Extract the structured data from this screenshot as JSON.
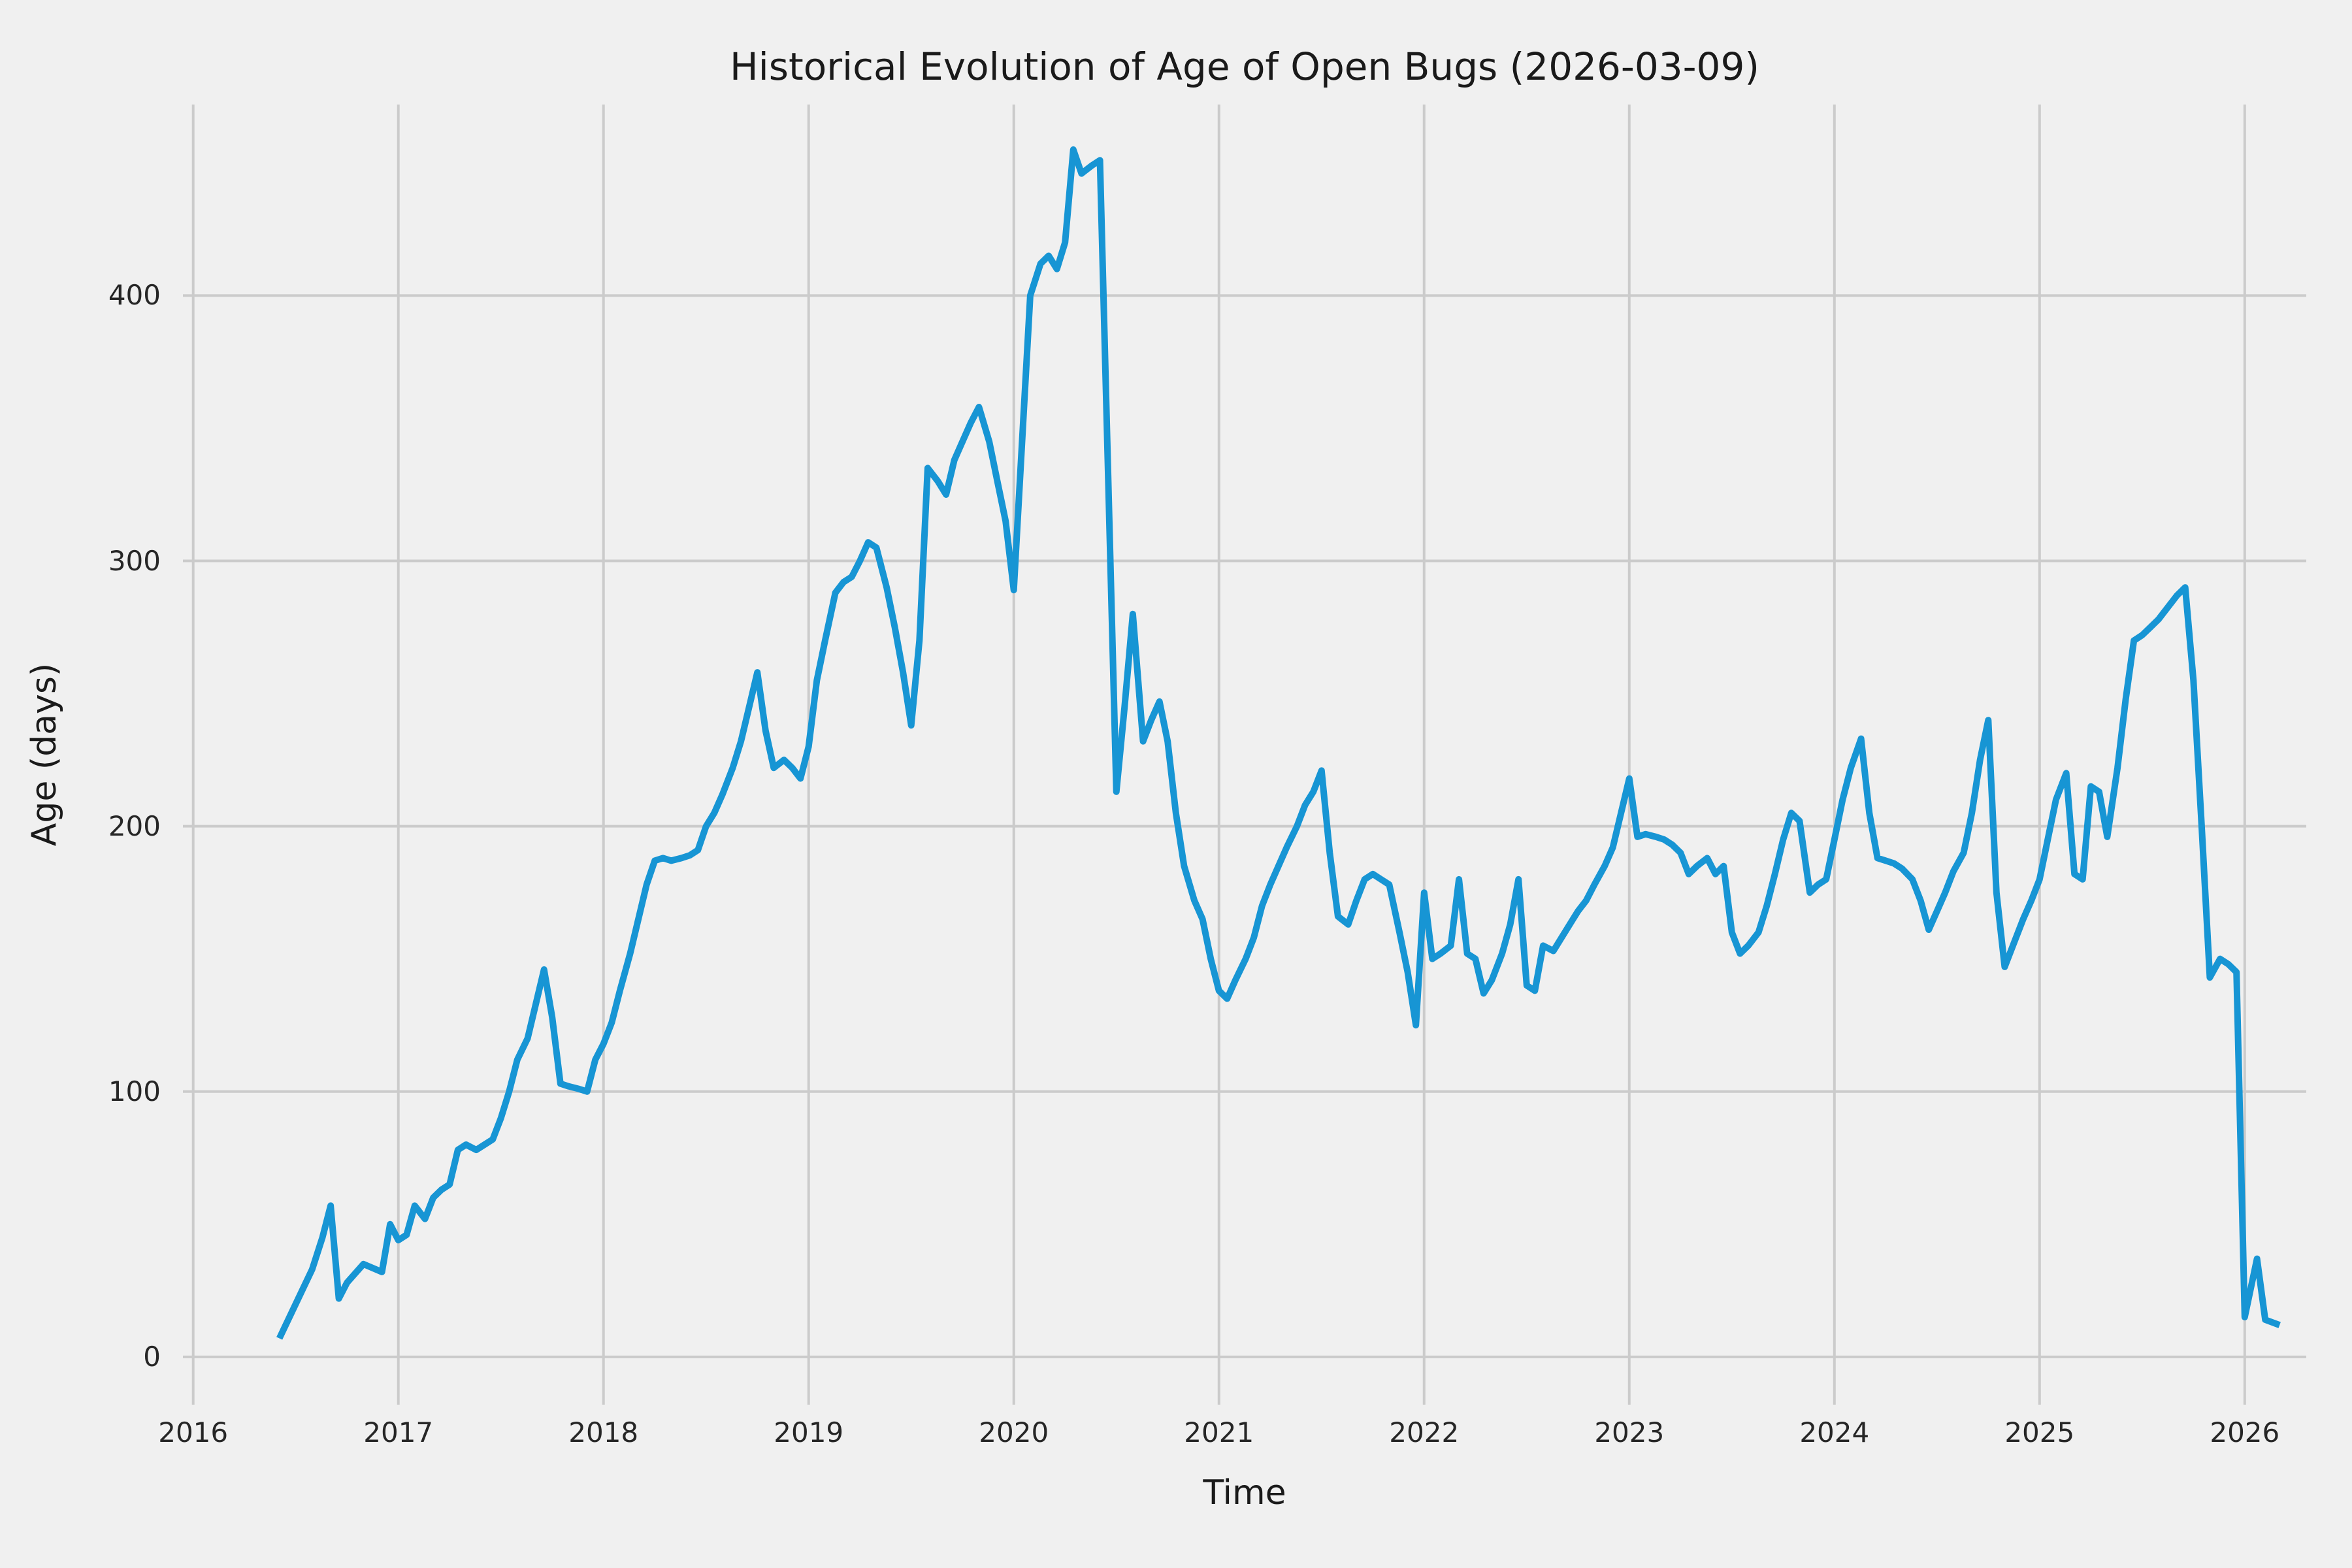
{
  "chart_data": {
    "type": "line",
    "title": "Historical Evolution of Age of Open Bugs (2026-03-09)",
    "xlabel": "Time",
    "ylabel": "Age (days)",
    "legend": null,
    "grid": true,
    "background_color": "#f0f0f0",
    "grid_color": "#cbcbcb",
    "line_color": "#1795d4",
    "line_width": 10,
    "xlim": [
      2015.95,
      2026.3
    ],
    "ylim": [
      -18,
      472
    ],
    "xticks": [
      2016,
      2017,
      2018,
      2019,
      2020,
      2021,
      2022,
      2023,
      2024,
      2025,
      2026
    ],
    "xtick_labels": [
      "2016",
      "2017",
      "2018",
      "2019",
      "2020",
      "2021",
      "2022",
      "2023",
      "2024",
      "2025",
      "2026"
    ],
    "yticks": [
      0,
      100,
      200,
      300,
      400
    ],
    "ytick_labels": [
      "0",
      "100",
      "200",
      "300",
      "400"
    ],
    "x": [
      2016.42,
      2016.5,
      2016.58,
      2016.63,
      2016.67,
      2016.71,
      2016.75,
      2016.83,
      2016.92,
      2016.96,
      2017.0,
      2017.04,
      2017.08,
      2017.13,
      2017.17,
      2017.21,
      2017.25,
      2017.29,
      2017.33,
      2017.38,
      2017.42,
      2017.46,
      2017.5,
      2017.54,
      2017.58,
      2017.63,
      2017.67,
      2017.71,
      2017.75,
      2017.79,
      2017.83,
      2017.88,
      2017.92,
      2017.96,
      2018.0,
      2018.04,
      2018.08,
      2018.13,
      2018.17,
      2018.21,
      2018.25,
      2018.29,
      2018.33,
      2018.38,
      2018.42,
      2018.46,
      2018.5,
      2018.54,
      2018.58,
      2018.63,
      2018.67,
      2018.71,
      2018.75,
      2018.79,
      2018.83,
      2018.88,
      2018.92,
      2018.96,
      2019.0,
      2019.04,
      2019.08,
      2019.13,
      2019.17,
      2019.21,
      2019.25,
      2019.29,
      2019.33,
      2019.38,
      2019.42,
      2019.46,
      2019.5,
      2019.54,
      2019.58,
      2019.63,
      2019.67,
      2019.71,
      2019.75,
      2019.79,
      2019.83,
      2019.88,
      2019.92,
      2019.96,
      2020.0,
      2020.08,
      2020.13,
      2020.17,
      2020.21,
      2020.25,
      2020.29,
      2020.33,
      2020.38,
      2020.42,
      2020.5,
      2020.54,
      2020.58,
      2020.63,
      2020.67,
      2020.71,
      2020.75,
      2020.79,
      2020.83,
      2020.88,
      2020.92,
      2020.96,
      2021.0,
      2021.04,
      2021.08,
      2021.13,
      2021.17,
      2021.21,
      2021.25,
      2021.29,
      2021.33,
      2021.38,
      2021.42,
      2021.46,
      2021.5,
      2021.54,
      2021.58,
      2021.63,
      2021.67,
      2021.71,
      2021.75,
      2021.79,
      2021.83,
      2021.88,
      2021.92,
      2021.96,
      2022.0,
      2022.04,
      2022.08,
      2022.13,
      2022.17,
      2022.21,
      2022.25,
      2022.29,
      2022.33,
      2022.38,
      2022.42,
      2022.46,
      2022.5,
      2022.54,
      2022.58,
      2022.63,
      2022.67,
      2022.71,
      2022.75,
      2022.79,
      2022.83,
      2022.88,
      2022.92,
      2022.96,
      2023.0,
      2023.04,
      2023.08,
      2023.13,
      2023.17,
      2023.21,
      2023.25,
      2023.29,
      2023.33,
      2023.38,
      2023.42,
      2023.46,
      2023.5,
      2023.54,
      2023.58,
      2023.63,
      2023.67,
      2023.71,
      2023.75,
      2023.79,
      2023.83,
      2023.88,
      2023.92,
      2023.96,
      2024.0,
      2024.04,
      2024.08,
      2024.13,
      2024.17,
      2024.21,
      2024.25,
      2024.29,
      2024.33,
      2024.38,
      2024.42,
      2024.46,
      2024.5,
      2024.54,
      2024.58,
      2024.63,
      2024.67,
      2024.71,
      2024.75,
      2024.79,
      2024.83,
      2024.88,
      2024.92,
      2024.96,
      2025.0,
      2025.04,
      2025.08,
      2025.13,
      2025.17,
      2025.21,
      2025.25,
      2025.29,
      2025.33,
      2025.38,
      2025.42,
      2025.46,
      2025.5,
      2025.54,
      2025.58,
      2025.63,
      2025.67,
      2025.71,
      2025.75,
      2025.79,
      2025.83,
      2025.88,
      2025.92,
      2025.96,
      2026.0,
      2026.06,
      2026.1,
      2026.17
    ],
    "y": [
      7,
      20,
      33,
      45,
      57,
      22,
      28,
      35,
      32,
      50,
      44,
      46,
      57,
      52,
      60,
      63,
      65,
      78,
      80,
      78,
      80,
      82,
      90,
      100,
      112,
      120,
      133,
      146,
      128,
      103,
      102,
      101,
      100,
      112,
      118,
      126,
      138,
      152,
      165,
      178,
      187,
      188,
      187,
      188,
      189,
      191,
      200,
      205,
      212,
      222,
      232,
      245,
      258,
      236,
      222,
      225,
      222,
      218,
      230,
      255,
      270,
      288,
      292,
      294,
      300,
      307,
      305,
      290,
      275,
      258,
      238,
      270,
      335,
      330,
      325,
      338,
      345,
      352,
      358,
      345,
      330,
      315,
      289,
      400,
      412,
      415,
      410,
      420,
      455,
      446,
      449,
      451,
      213,
      245,
      280,
      232,
      240,
      247,
      232,
      205,
      185,
      172,
      165,
      150,
      138,
      135,
      142,
      150,
      158,
      170,
      178,
      185,
      192,
      200,
      208,
      213,
      221,
      190,
      166,
      163,
      172,
      180,
      182,
      180,
      178,
      160,
      145,
      125,
      175,
      150,
      152,
      155,
      180,
      152,
      150,
      137,
      142,
      152,
      163,
      180,
      140,
      138,
      155,
      153,
      158,
      163,
      168,
      172,
      178,
      185,
      192,
      205,
      218,
      196,
      197,
      196,
      195,
      193,
      190,
      182,
      185,
      188,
      182,
      185,
      160,
      152,
      155,
      160,
      170,
      182,
      195,
      205,
      202,
      175,
      178,
      180,
      195,
      210,
      222,
      233,
      205,
      188,
      187,
      186,
      184,
      180,
      172,
      161,
      168,
      175,
      183,
      190,
      205,
      225,
      240,
      175,
      147,
      157,
      165,
      172,
      180,
      195,
      210,
      220,
      182,
      180,
      215,
      213,
      196,
      222,
      248,
      270,
      272,
      275,
      278,
      283,
      287,
      290,
      255,
      200,
      143,
      150,
      148,
      145,
      15,
      37,
      14,
      12
    ]
  }
}
